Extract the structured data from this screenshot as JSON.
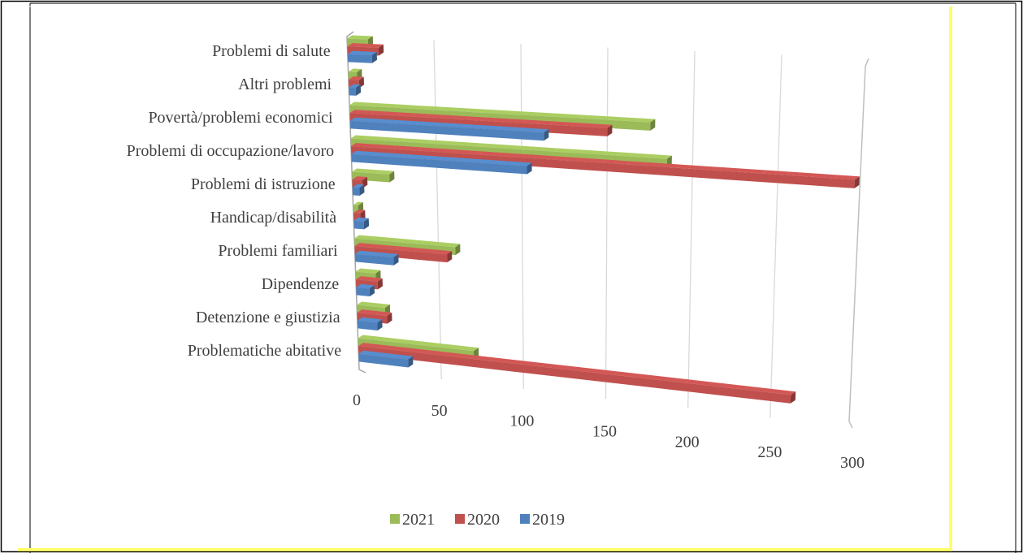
{
  "chart_data": {
    "type": "bar",
    "orientation": "horizontal",
    "style": "3d-perspective",
    "title": "",
    "categories": [
      "Problemi di salute",
      "Altri problemi",
      "Povertà/problemi economici",
      "Problemi di occupazione/lavoro",
      "Problemi di istruzione",
      "Handicap/disabilità",
      "Problemi familiari",
      "Dipendenze",
      "Detenzione e giustizia",
      "Problematiche abitative"
    ],
    "series": [
      {
        "name": "2021",
        "color": "#9BBB59",
        "values": [
          12,
          5,
          175,
          185,
          22,
          3,
          60,
          12,
          17,
          70
        ]
      },
      {
        "name": "2020",
        "color": "#C0504D",
        "values": [
          18,
          6,
          150,
          295,
          6,
          4,
          55,
          13,
          18,
          262
        ]
      },
      {
        "name": "2019",
        "color": "#4F81BD",
        "values": [
          14,
          4,
          113,
          103,
          4,
          6,
          23,
          8,
          12,
          30
        ]
      }
    ],
    "xlim": [
      0,
      300
    ],
    "x_ticks": [
      "0",
      "50",
      "100",
      "150",
      "200",
      "250",
      "300"
    ],
    "grid": true,
    "legend_position": "bottom"
  }
}
